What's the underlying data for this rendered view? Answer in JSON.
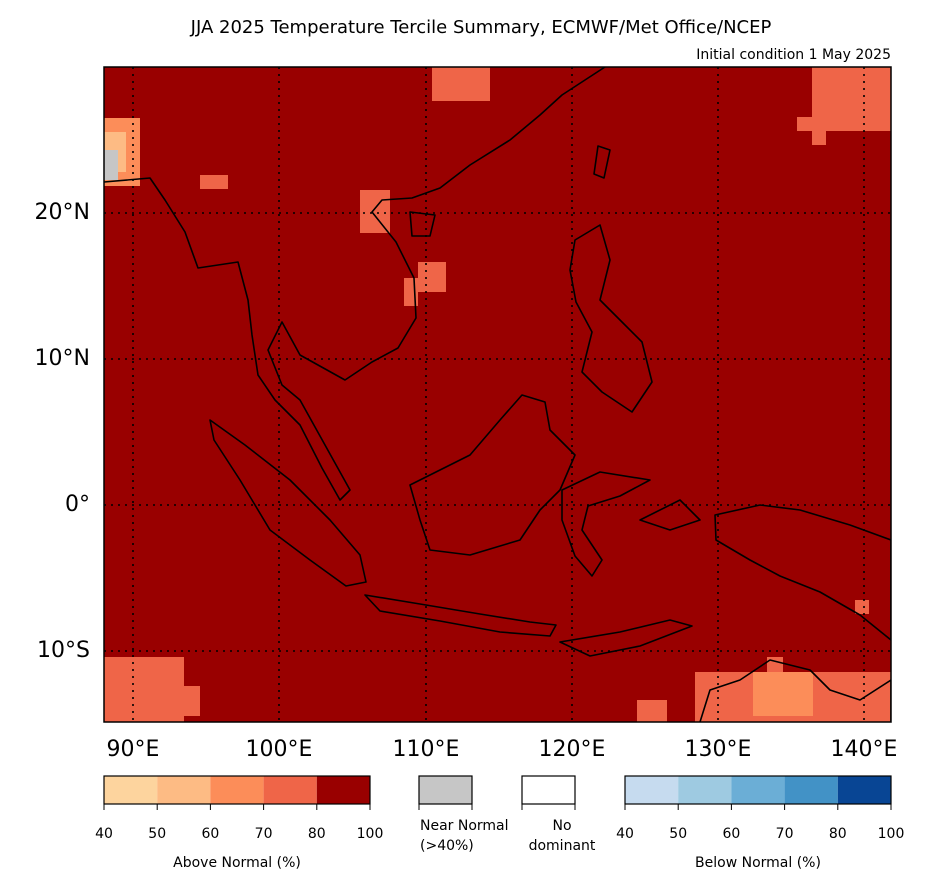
{
  "title": "JJA 2025 Temperature Tercile Summary, ECMWF/Met Office/NCEP",
  "subtitle": "Initial condition 1 May 2025",
  "map": {
    "lat_labels": [
      "20°N",
      "10°N",
      "0°",
      "10°S"
    ],
    "lon_labels": [
      "90°E",
      "100°E",
      "110°E",
      "120°E",
      "130°E",
      "140°E"
    ]
  },
  "legend": {
    "above": {
      "label": "Above Normal (%)",
      "ticks": [
        40,
        50,
        60,
        70,
        80,
        100
      ],
      "colors": [
        "#fdd49e",
        "#fdbb84",
        "#fc8d59",
        "#ef6548",
        "#990000"
      ]
    },
    "near": {
      "label": [
        "Near Normal",
        "(>40%)"
      ],
      "color": "#c6c6c6"
    },
    "none": {
      "label": [
        "No",
        "dominant"
      ],
      "color": "#ffffff"
    },
    "below": {
      "label": "Below Normal (%)",
      "ticks": [
        40,
        50,
        60,
        70,
        80,
        100
      ],
      "colors": [
        "#c6dbef",
        "#9ecae1",
        "#6baed6",
        "#4292c6",
        "#084594"
      ]
    }
  }
}
